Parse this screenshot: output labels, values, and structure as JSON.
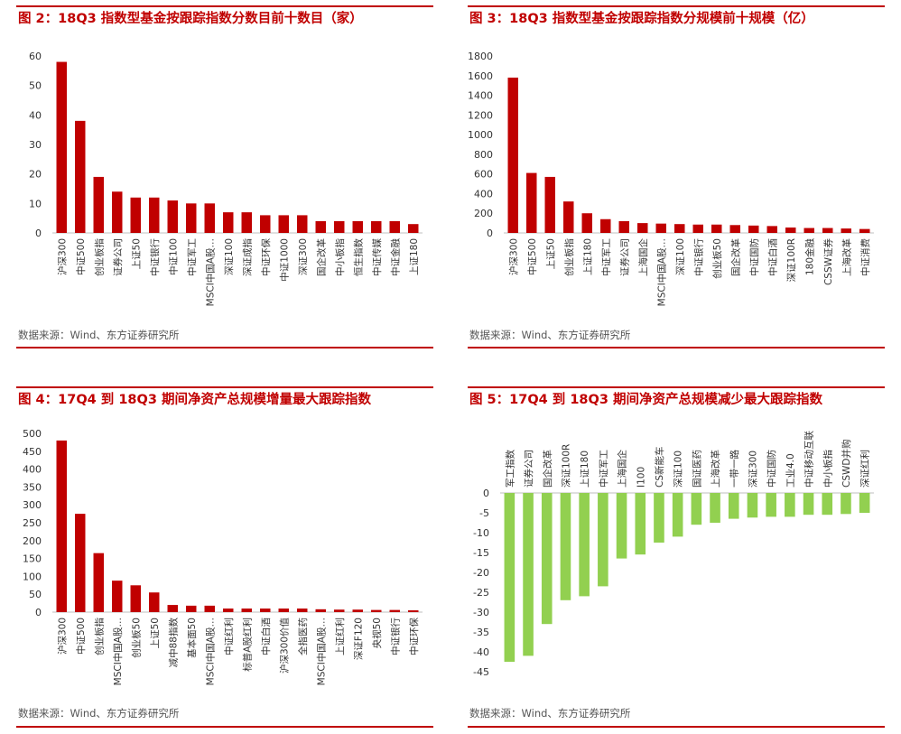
{
  "panels": [
    {
      "title": "图 2：18Q3 指数型基金按跟踪指数分数目前十数目（家）",
      "source": "数据来源：Wind、东方证券研究所",
      "chart_data": {
        "type": "bar",
        "color": "#c00000",
        "categories": [
          "沪深300",
          "中证500",
          "创业板指",
          "证券公司",
          "上证50",
          "中证银行",
          "中证100",
          "中证军工",
          "MSCI中国A股…",
          "深证100",
          "深证成指",
          "中证环保",
          "中证1000",
          "深证300",
          "国企改革",
          "中小板指",
          "恒生指数",
          "中证传媒",
          "中证金融",
          "上证180"
        ],
        "values": [
          58,
          38,
          19,
          14,
          12,
          12,
          11,
          10,
          10,
          7,
          7,
          6,
          6,
          6,
          4,
          4,
          4,
          4,
          4,
          3
        ],
        "yticks": [
          0,
          10,
          20,
          30,
          40,
          50,
          60
        ],
        "ylim": [
          0,
          60
        ]
      }
    },
    {
      "title": "图 3：18Q3 指数型基金按跟踪指数分规模前十规模（亿）",
      "source": "数据来源：Wind、东方证券研究所",
      "chart_data": {
        "type": "bar",
        "color": "#c00000",
        "categories": [
          "沪深300",
          "中证500",
          "上证50",
          "创业板指",
          "上证180",
          "中证军工",
          "证券公司",
          "上海国企",
          "MSCI中国A股…",
          "深证100",
          "中证银行",
          "创业板50",
          "国企改革",
          "中证国防",
          "中证白酒",
          "深证100R",
          "180金融",
          "CSSW证券",
          "上海改革",
          "中证消费"
        ],
        "values": [
          1580,
          610,
          570,
          320,
          200,
          140,
          120,
          100,
          95,
          90,
          85,
          85,
          80,
          75,
          70,
          55,
          50,
          50,
          45,
          40
        ],
        "yticks": [
          0,
          200,
          400,
          600,
          800,
          1000,
          1200,
          1400,
          1600,
          1800
        ],
        "ylim": [
          0,
          1800
        ]
      }
    },
    {
      "title": "图 4：17Q4 到 18Q3 期间净资产总规模增量最大跟踪指数",
      "source": "数据来源：Wind、东方证券研究所",
      "chart_data": {
        "type": "bar",
        "color": "#c00000",
        "categories": [
          "沪深300",
          "中证500",
          "创业板指",
          "MSCI中国A股…",
          "创业板50",
          "上证50",
          "减中88指数",
          "基本面50",
          "MSCI中国A股…",
          "中证红利",
          "标普A股红利",
          "中证白酒",
          "沪深300价值",
          "全指医药",
          "MSCI中国A股…",
          "上证红利",
          "深证F120",
          "央视50",
          "中证银行",
          "中证环保"
        ],
        "values": [
          480,
          275,
          165,
          88,
          75,
          55,
          20,
          18,
          18,
          10,
          10,
          10,
          10,
          10,
          8,
          7,
          7,
          6,
          6,
          5
        ],
        "yticks": [
          0,
          50,
          100,
          150,
          200,
          250,
          300,
          350,
          400,
          450,
          500
        ],
        "ylim": [
          0,
          500
        ]
      }
    },
    {
      "title": "图 5：17Q4 到 18Q3 期间净资产总规模减少最大跟踪指数",
      "source": "数据来源：Wind、东方证券研究所",
      "chart_data": {
        "type": "bar",
        "color": "#92d050",
        "categories": [
          "军工指数",
          "证券公司",
          "国企改革",
          "深证100R",
          "上证180",
          "中证军工",
          "上海国企",
          "I100",
          "CS新能车",
          "深证100",
          "国证医药",
          "上海改革",
          "一带一路",
          "深证300",
          "中证国防",
          "工业4.0",
          "中证移动互联",
          "中小板指",
          "CSWD并购",
          "深证红利"
        ],
        "values": [
          -42.5,
          -41,
          -33,
          -27,
          -26,
          -23.5,
          -16.5,
          -15.5,
          -12.5,
          -11,
          -8,
          -7.5,
          -6.5,
          -6.2,
          -6,
          -6,
          -5.5,
          -5.5,
          -5.3,
          -5
        ],
        "yticks": [
          0,
          -5,
          -10,
          -15,
          -20,
          -25,
          -30,
          -35,
          -40,
          -45
        ],
        "ylim": [
          -45,
          0
        ]
      }
    }
  ]
}
